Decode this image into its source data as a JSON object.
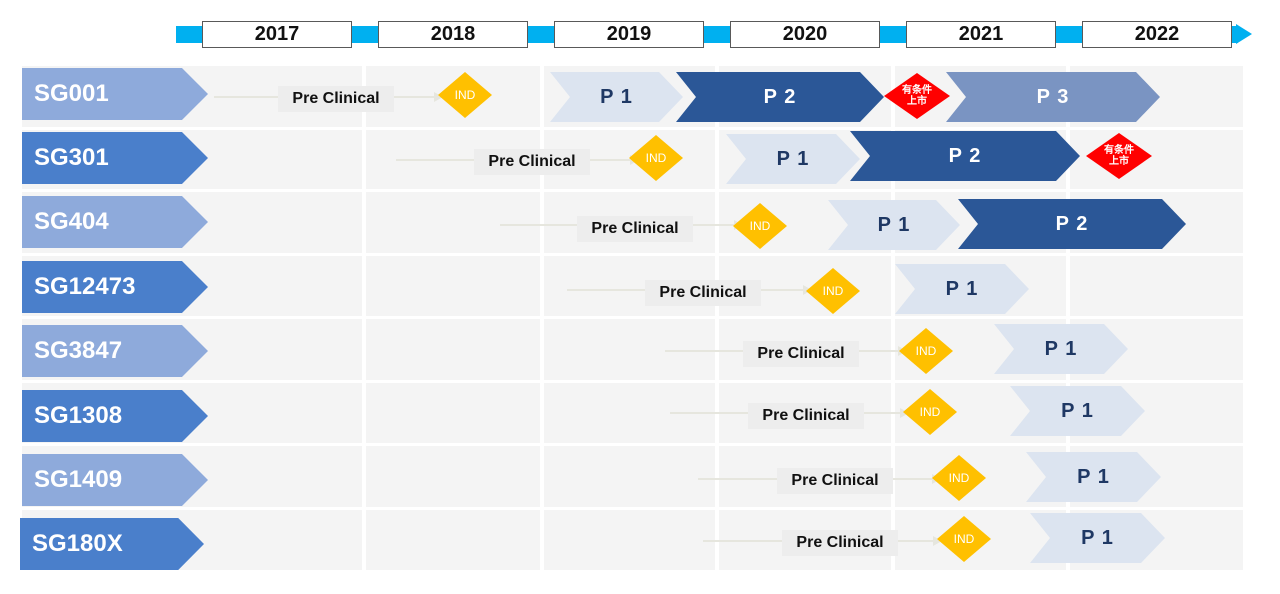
{
  "years": [
    "2017",
    "2018",
    "2019",
    "2020",
    "2021",
    "2022"
  ],
  "labels": {
    "pre_clinical": "Pre Clinical",
    "ind": "IND",
    "p1": "P 1",
    "p2": "P 2",
    "p3": "P 3",
    "conditional_approval": "有条件上市"
  },
  "products": [
    {
      "name": "SG001",
      "stages": [
        "Pre Clinical",
        "IND",
        "P 1",
        "P 2",
        "有条件上市",
        "P 3"
      ]
    },
    {
      "name": "SG301",
      "stages": [
        "Pre Clinical",
        "IND",
        "P 1",
        "P 2",
        "有条件上市"
      ]
    },
    {
      "name": "SG404",
      "stages": [
        "Pre Clinical",
        "IND",
        "P 1",
        "P 2"
      ]
    },
    {
      "name": "SG12473",
      "stages": [
        "Pre Clinical",
        "IND",
        "P 1"
      ]
    },
    {
      "name": "SG3847",
      "stages": [
        "Pre Clinical",
        "IND",
        "P 1"
      ]
    },
    {
      "name": "SG1308",
      "stages": [
        "Pre Clinical",
        "IND",
        "P 1"
      ]
    },
    {
      "name": "SG1409",
      "stages": [
        "Pre Clinical",
        "IND",
        "P 1"
      ]
    },
    {
      "name": "SG180X",
      "stages": [
        "Pre Clinical",
        "IND",
        "P 1"
      ]
    }
  ],
  "colors": {
    "timeline": "#00b0f0",
    "label_light": "#8eaadb",
    "label_dark": "#4a7fcb",
    "ind": "#ffc000",
    "approval": "#ff0000",
    "phase_light": "#dce4f0",
    "phase_dark": "#2b5797",
    "phase_mid": "#7a94c2"
  }
}
